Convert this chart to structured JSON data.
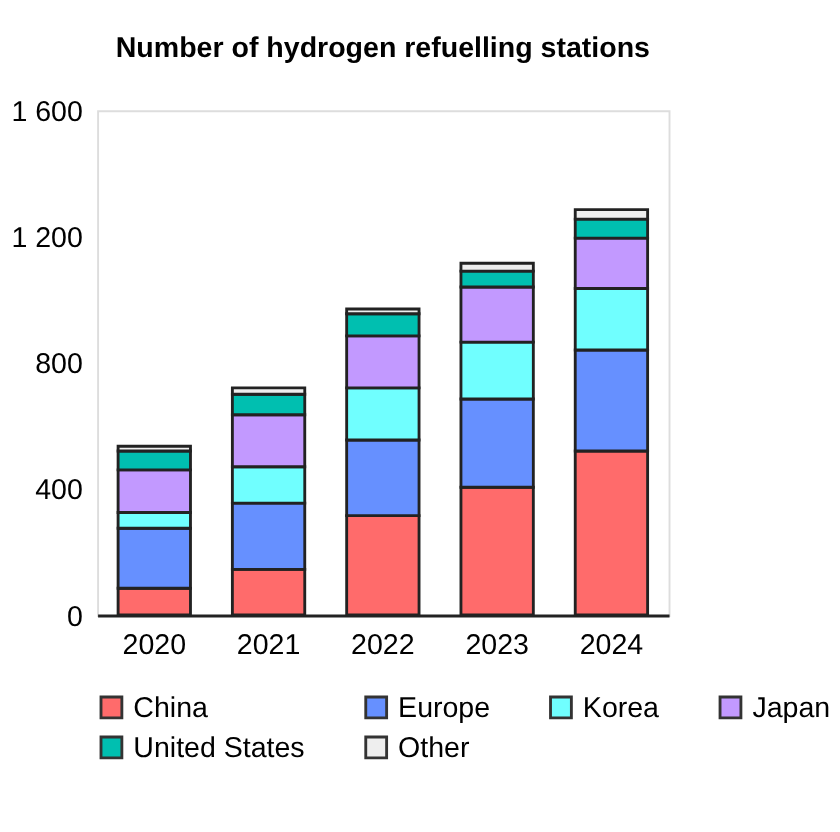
{
  "chart_data": {
    "type": "bar",
    "title": "Number of hydrogen refuelling stations",
    "stacked": true,
    "categories": [
      "2020",
      "2021",
      "2022",
      "2023",
      "2024"
    ],
    "series": [
      {
        "name": "China",
        "color": "#ff6b6b",
        "values": [
          85,
          145,
          315,
          405,
          520
        ]
      },
      {
        "name": "Europe",
        "color": "#6690ff",
        "values": [
          190,
          210,
          240,
          280,
          320
        ]
      },
      {
        "name": "Korea",
        "color": "#70ffff",
        "values": [
          50,
          115,
          165,
          180,
          195
        ]
      },
      {
        "name": "Japan",
        "color": "#c299ff",
        "values": [
          135,
          165,
          165,
          175,
          160
        ]
      },
      {
        "name": "United States",
        "color": "#00bfb0",
        "values": [
          60,
          65,
          70,
          50,
          60
        ]
      },
      {
        "name": "Other",
        "color": "#eeeeee",
        "values": [
          15,
          20,
          15,
          25,
          30
        ]
      }
    ],
    "ylim": [
      0,
      1600
    ],
    "yticks": [
      0,
      400,
      800,
      {
        "value": 1200,
        "label": "1 200"
      },
      {
        "value": 1600,
        "label": "1 600"
      }
    ],
    "grid": false,
    "legend": "bottom"
  }
}
